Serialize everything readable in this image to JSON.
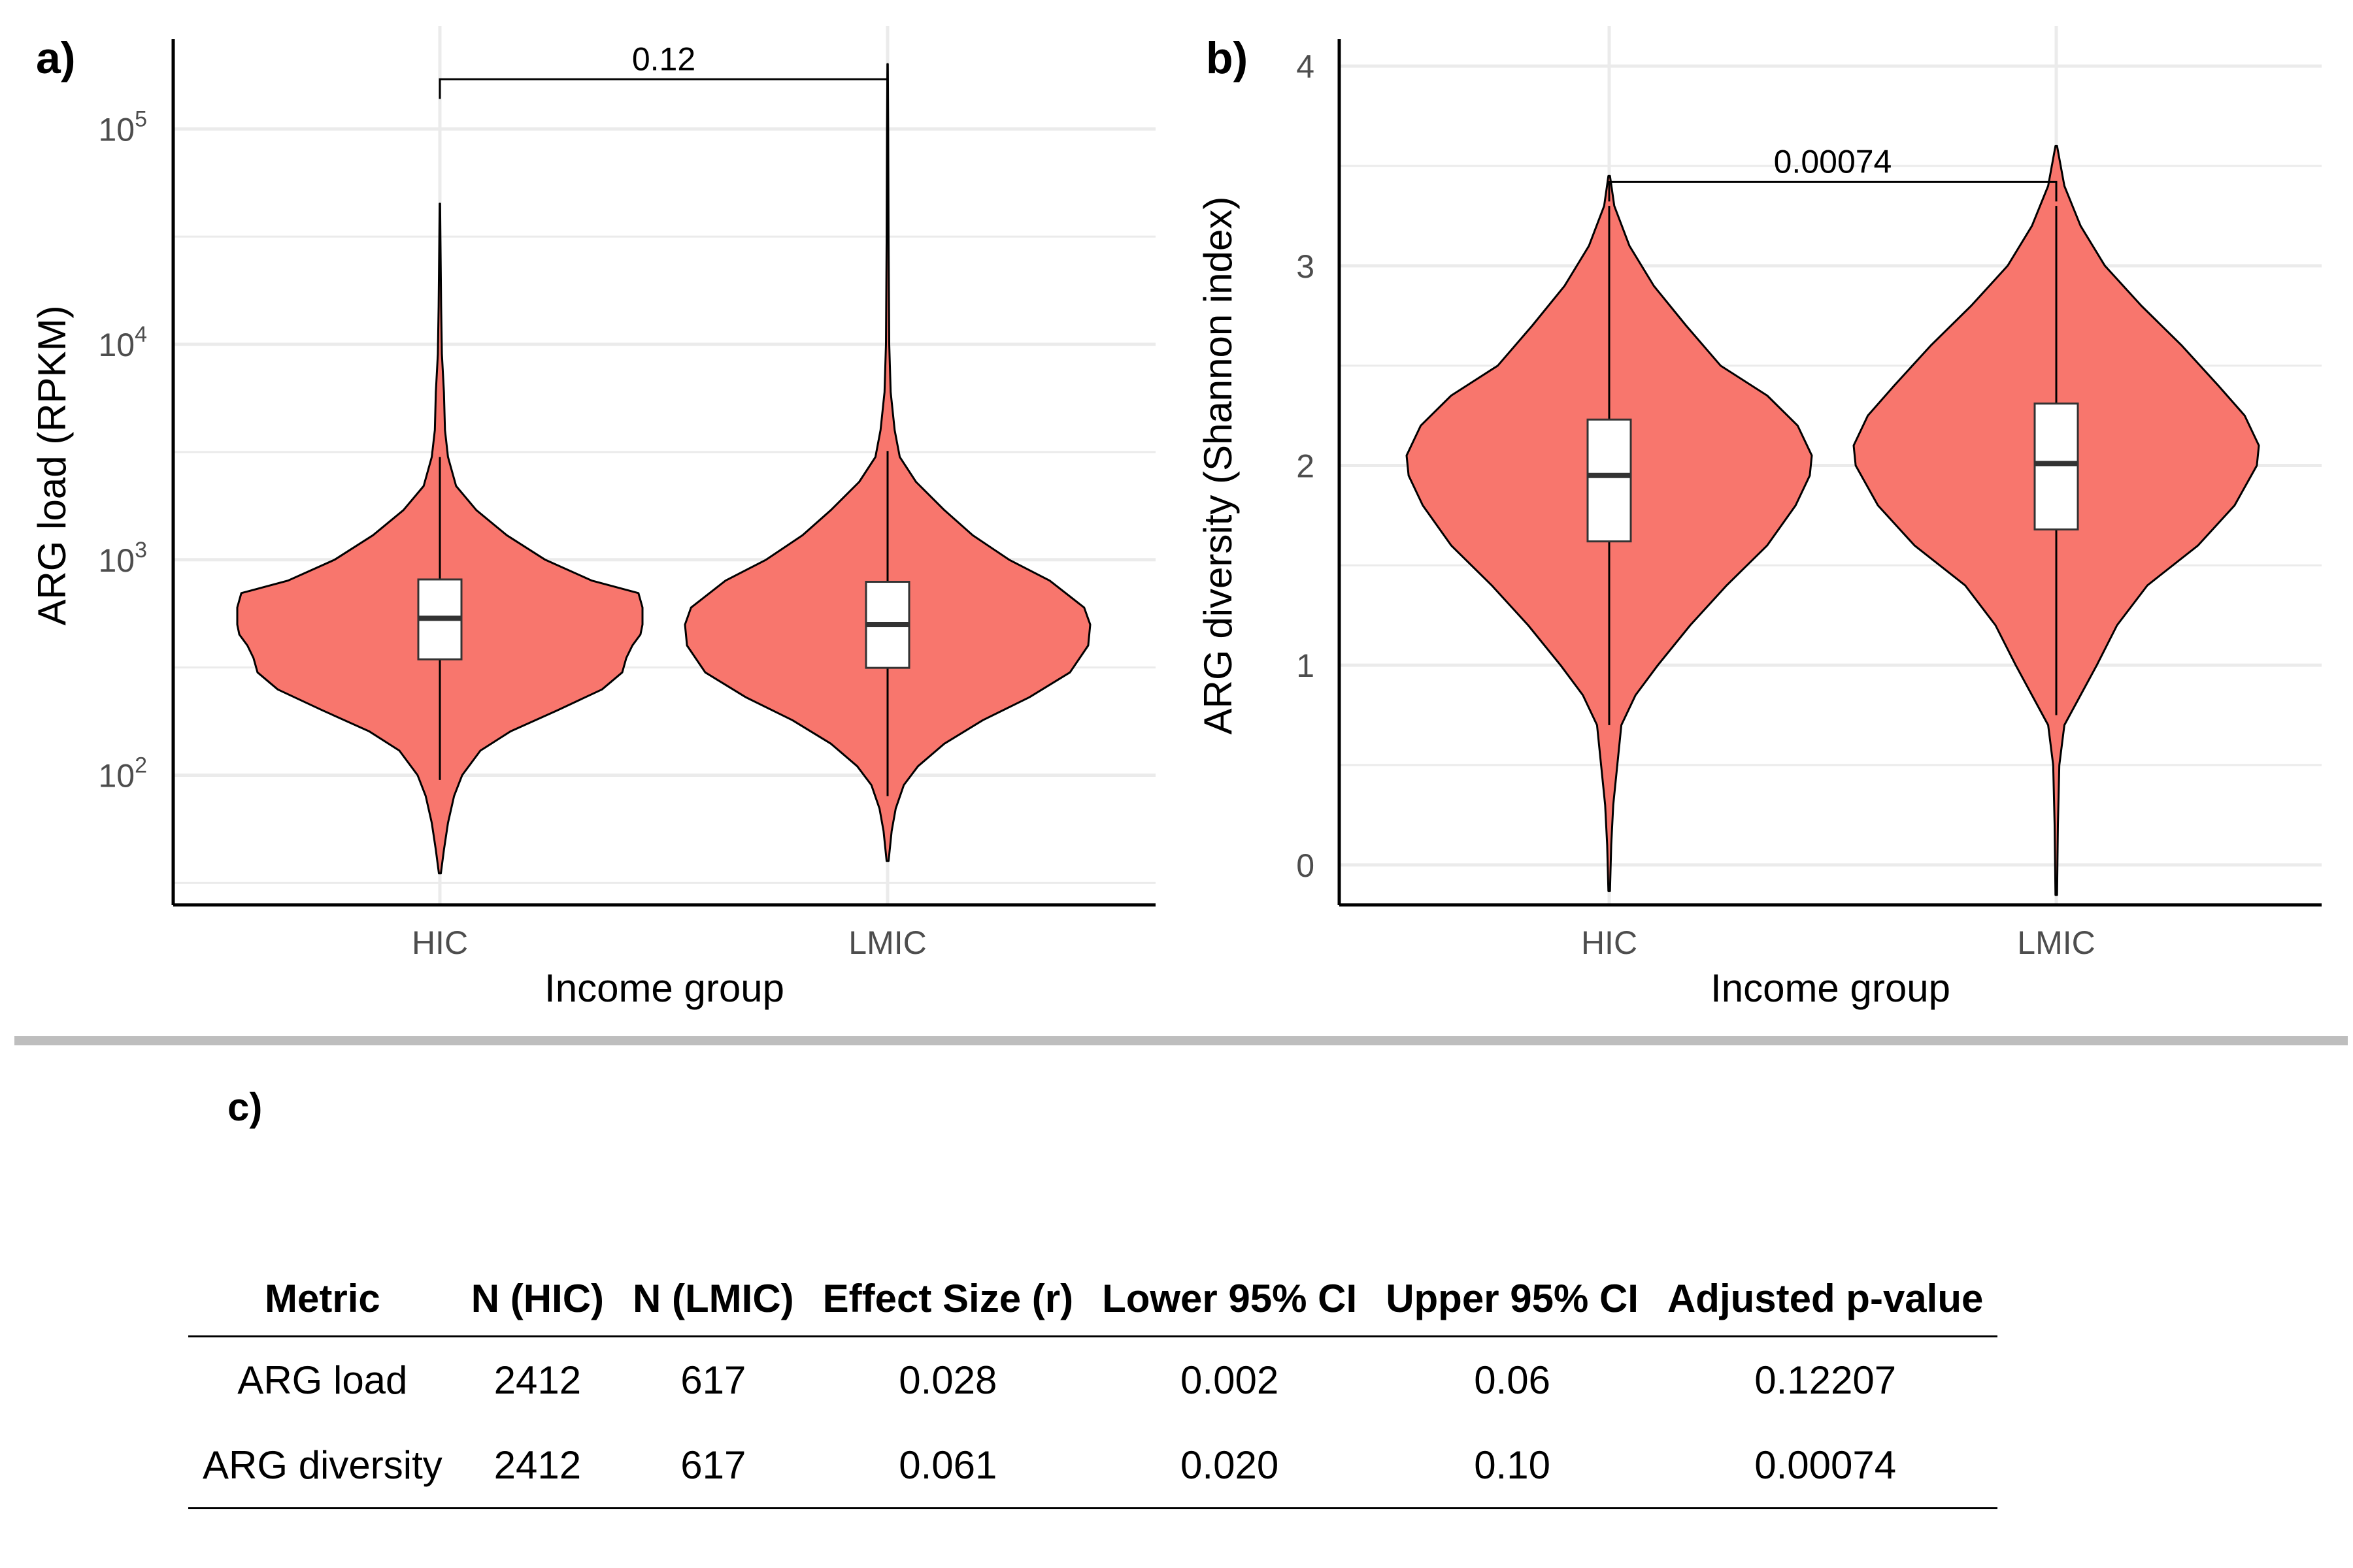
{
  "colors": {
    "violin_fill": "#F8766D",
    "grid": "#ebebeb",
    "axis": "#000000",
    "box_fill": "#ffffff"
  },
  "chart_data": [
    {
      "type": "violin",
      "panel_label": "a)",
      "xlabel": "Income group",
      "ylabel": "ARG load (RPKM)",
      "y_scale": "log10",
      "ylim": [
        25,
        300000
      ],
      "categories": [
        "HIC",
        "LMIC"
      ],
      "y_ticks": [
        100,
        1000,
        10000,
        100000
      ],
      "y_tick_labels": [
        {
          "base": "10",
          "exp": "2"
        },
        {
          "base": "10",
          "exp": "3"
        },
        {
          "base": "10",
          "exp": "4"
        },
        {
          "base": "10",
          "exp": "5"
        }
      ],
      "groups": [
        {
          "name": "HIC",
          "box": {
            "whisker_low": 95,
            "q1": 345,
            "median": 535,
            "q3": 810,
            "whisker_high": 3000
          },
          "density": [
            [
              35,
              0.005
            ],
            [
              45,
              0.02
            ],
            [
              60,
              0.04
            ],
            [
              80,
              0.07
            ],
            [
              100,
              0.11
            ],
            [
              130,
              0.2
            ],
            [
              160,
              0.35
            ],
            [
              200,
              0.58
            ],
            [
              250,
              0.8
            ],
            [
              300,
              0.9
            ],
            [
              350,
              0.92
            ],
            [
              400,
              0.95
            ],
            [
              450,
              0.99
            ],
            [
              500,
              1.0
            ],
            [
              600,
              1.0
            ],
            [
              700,
              0.98
            ],
            [
              800,
              0.75
            ],
            [
              1000,
              0.52
            ],
            [
              1300,
              0.33
            ],
            [
              1700,
              0.18
            ],
            [
              2200,
              0.08
            ],
            [
              3000,
              0.04
            ],
            [
              4000,
              0.025
            ],
            [
              6000,
              0.02
            ],
            [
              9000,
              0.01
            ],
            [
              15000,
              0.006
            ],
            [
              30000,
              0.003
            ],
            [
              45000,
              0.001
            ]
          ]
        },
        {
          "name": "LMIC",
          "box": {
            "whisker_low": 80,
            "q1": 315,
            "median": 500,
            "q3": 790,
            "whisker_high": 3200
          },
          "density": [
            [
              40,
              0.005
            ],
            [
              55,
              0.02
            ],
            [
              70,
              0.04
            ],
            [
              90,
              0.08
            ],
            [
              110,
              0.15
            ],
            [
              140,
              0.28
            ],
            [
              180,
              0.47
            ],
            [
              230,
              0.7
            ],
            [
              300,
              0.9
            ],
            [
              400,
              0.99
            ],
            [
              500,
              1.0
            ],
            [
              600,
              0.97
            ],
            [
              800,
              0.8
            ],
            [
              1000,
              0.6
            ],
            [
              1300,
              0.42
            ],
            [
              1700,
              0.28
            ],
            [
              2300,
              0.14
            ],
            [
              3000,
              0.06
            ],
            [
              4000,
              0.035
            ],
            [
              6000,
              0.015
            ],
            [
              10000,
              0.008
            ],
            [
              30000,
              0.005
            ],
            [
              100000,
              0.003
            ],
            [
              200000,
              0.001
            ]
          ]
        }
      ],
      "comparison": {
        "label": "0.12",
        "y": 170000
      }
    },
    {
      "type": "violin",
      "panel_label": "b)",
      "xlabel": "Income group",
      "ylabel": "ARG diversity (Shannon index)",
      "y_scale": "linear",
      "ylim": [
        -0.2,
        4.2
      ],
      "categories": [
        "HIC",
        "LMIC"
      ],
      "y_ticks": [
        0,
        1,
        2,
        3,
        4
      ],
      "y_tick_labels": [
        "0",
        "1",
        "2",
        "3",
        "4"
      ],
      "groups": [
        {
          "name": "HIC",
          "box": {
            "whisker_low": 0.7,
            "q1": 1.62,
            "median": 1.95,
            "q3": 2.23,
            "whisker_high": 3.3
          },
          "density": [
            [
              -0.13,
              0.004
            ],
            [
              0.1,
              0.01
            ],
            [
              0.3,
              0.02
            ],
            [
              0.5,
              0.04
            ],
            [
              0.7,
              0.06
            ],
            [
              0.85,
              0.13
            ],
            [
              1.0,
              0.24
            ],
            [
              1.2,
              0.4
            ],
            [
              1.4,
              0.58
            ],
            [
              1.6,
              0.78
            ],
            [
              1.8,
              0.92
            ],
            [
              1.95,
              0.99
            ],
            [
              2.05,
              1.0
            ],
            [
              2.2,
              0.93
            ],
            [
              2.35,
              0.78
            ],
            [
              2.5,
              0.55
            ],
            [
              2.7,
              0.38
            ],
            [
              2.9,
              0.22
            ],
            [
              3.1,
              0.1
            ],
            [
              3.3,
              0.025
            ],
            [
              3.45,
              0.004
            ]
          ]
        },
        {
          "name": "LMIC",
          "box": {
            "whisker_low": 0.75,
            "q1": 1.68,
            "median": 2.01,
            "q3": 2.31,
            "whisker_high": 3.3
          },
          "density": [
            [
              -0.15,
              0.004
            ],
            [
              0.2,
              0.008
            ],
            [
              0.5,
              0.015
            ],
            [
              0.7,
              0.04
            ],
            [
              0.85,
              0.12
            ],
            [
              1.0,
              0.2
            ],
            [
              1.2,
              0.3
            ],
            [
              1.4,
              0.45
            ],
            [
              1.6,
              0.7
            ],
            [
              1.8,
              0.88
            ],
            [
              2.0,
              0.99
            ],
            [
              2.1,
              1.0
            ],
            [
              2.25,
              0.93
            ],
            [
              2.4,
              0.8
            ],
            [
              2.6,
              0.62
            ],
            [
              2.8,
              0.42
            ],
            [
              3.0,
              0.24
            ],
            [
              3.2,
              0.12
            ],
            [
              3.4,
              0.04
            ],
            [
              3.6,
              0.004
            ]
          ]
        }
      ],
      "comparison": {
        "label": "0.00074",
        "y": 3.42
      }
    }
  ],
  "table": {
    "label": "c)",
    "columns": [
      "Metric",
      "N (HIC)",
      "N (LMIC)",
      "Effect Size (r)",
      "Lower 95% CI",
      "Upper 95% CI",
      "Adjusted p-value"
    ],
    "rows": [
      [
        "ARG load",
        "2412",
        "617",
        "0.028",
        "0.002",
        "0.06",
        "0.12207"
      ],
      [
        "ARG diversity",
        "2412",
        "617",
        "0.061",
        "0.020",
        "0.10",
        "0.00074"
      ]
    ]
  }
}
